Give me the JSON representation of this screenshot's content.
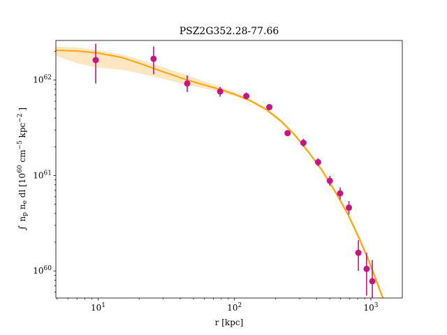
{
  "chart_data": {
    "type": "scatter",
    "title": "PSZ2G352.28-77.66",
    "xlabel": "r [kpc]",
    "ylabel_parts": {
      "integral": "∫",
      "n": "n",
      "p": "p",
      "e": "e",
      "dl": "dl [10",
      "exp1": "60",
      "cm": "cm",
      "exp2": "−5",
      "kpc": "kpc",
      "exp3": "−2",
      "close": "]"
    },
    "xscale": "log",
    "yscale": "log",
    "xlim": [
      4.9,
      1700
    ],
    "ylim": [
      5.2e+59,
      2.6e+62
    ],
    "xticks": [
      {
        "value": 10,
        "base": "10",
        "exp": "1"
      },
      {
        "value": 100,
        "base": "10",
        "exp": "2"
      },
      {
        "value": 1000,
        "base": "10",
        "exp": "3"
      }
    ],
    "yticks": [
      {
        "value": 1e+60,
        "base": "10",
        "exp": "60"
      },
      {
        "value": 1e+61,
        "base": "10",
        "exp": "61"
      },
      {
        "value": 1e+62,
        "base": "10",
        "exp": "62"
      }
    ],
    "colors": {
      "points": "#c71585",
      "model": "#ffa500",
      "band": "#ffd59a"
    },
    "points": [
      {
        "x": 9.6,
        "y": 1.62e+62,
        "ylo": 9.2e+61,
        "yhi": 2.4e+62
      },
      {
        "x": 25.5,
        "y": 1.67e+62,
        "ylo": 1.15e+62,
        "yhi": 2.25e+62
      },
      {
        "x": 45.0,
        "y": 9.2e+61,
        "ylo": 7.5e+61,
        "yhi": 1.12e+62
      },
      {
        "x": 78.5,
        "y": 7.6e+61,
        "ylo": 6.7e+61,
        "yhi": 8.5e+61
      },
      {
        "x": 122,
        "y": 6.8e+61,
        "ylo": 6.3e+61,
        "yhi": 7.4e+61
      },
      {
        "x": 180,
        "y": 5.2e+61,
        "ylo": 4.9e+61,
        "yhi": 5.5e+61
      },
      {
        "x": 245,
        "y": 2.78e+61,
        "ylo": 2.6e+61,
        "yhi": 2.96e+61
      },
      {
        "x": 320,
        "y": 2.2e+61,
        "ylo": 2e+61,
        "yhi": 2.42e+61
      },
      {
        "x": 410,
        "y": 1.38e+61,
        "ylo": 1.25e+61,
        "yhi": 1.52e+61
      },
      {
        "x": 500,
        "y": 8.8e+60,
        "ylo": 7.8e+60,
        "yhi": 9.9e+60
      },
      {
        "x": 595,
        "y": 6.5e+60,
        "ylo": 5.6e+60,
        "yhi": 7.5e+60
      },
      {
        "x": 690,
        "y": 4.6e+60,
        "ylo": 3.9e+60,
        "yhi": 5.4e+60
      },
      {
        "x": 810,
        "y": 1.55e+60,
        "ylo": 1e+60,
        "yhi": 2.1e+60
      },
      {
        "x": 930,
        "y": 1.05e+60,
        "ylo": 5.5e+59,
        "yhi": 1.55e+60
      },
      {
        "x": 1025,
        "y": 7.8e+59,
        "ylo": 5.2e+59,
        "yhi": 1.3e+60
      }
    ],
    "model": [
      {
        "x": 4.9,
        "y": 2.05e+62,
        "lo": 1.8e+62,
        "hi": 2.25e+62
      },
      {
        "x": 7,
        "y": 2.02e+62,
        "lo": 1.5e+62,
        "hi": 2.2e+62
      },
      {
        "x": 10,
        "y": 1.92e+62,
        "lo": 1.35e+62,
        "hi": 2.05e+62
      },
      {
        "x": 15,
        "y": 1.72e+62,
        "lo": 1.28e+62,
        "hi": 1.85e+62
      },
      {
        "x": 20,
        "y": 1.5e+62,
        "lo": 1.18e+62,
        "hi": 1.65e+62
      },
      {
        "x": 30,
        "y": 1.22e+62,
        "lo": 1.03e+62,
        "hi": 1.36e+62
      },
      {
        "x": 45,
        "y": 1e+62,
        "lo": 8.9e+61,
        "hi": 1.12e+62
      },
      {
        "x": 60,
        "y": 8.9e+61,
        "lo": 8.2e+61,
        "hi": 9.7e+61
      },
      {
        "x": 80,
        "y": 7.9e+61,
        "lo": 7.4e+61,
        "hi": 8.4e+61
      },
      {
        "x": 100,
        "y": 7.1e+61,
        "lo": 6.8e+61,
        "hi": 7.5e+61
      },
      {
        "x": 130,
        "y": 6.1e+61,
        "lo": 5.9e+61,
        "hi": 6.4e+61
      },
      {
        "x": 170,
        "y": 4.95e+61,
        "lo": 4.75e+61,
        "hi": 5.15e+61
      },
      {
        "x": 220,
        "y": 3.7e+61,
        "lo": 3.55e+61,
        "hi": 3.85e+61
      },
      {
        "x": 280,
        "y": 2.6e+61,
        "lo": 2.5e+61,
        "hi": 2.7e+61
      },
      {
        "x": 350,
        "y": 1.75e+61,
        "lo": 1.68e+61,
        "hi": 1.82e+61
      },
      {
        "x": 440,
        "y": 1.12e+61,
        "lo": 1.07e+61,
        "hi": 1.17e+61
      },
      {
        "x": 550,
        "y": 6.7e+60,
        "lo": 6.4e+60,
        "hi": 7e+60
      },
      {
        "x": 680,
        "y": 3.9e+60,
        "lo": 3.7e+60,
        "hi": 4.1e+60
      },
      {
        "x": 820,
        "y": 2.2e+60,
        "lo": 2.05e+60,
        "hi": 2.35e+60
      },
      {
        "x": 950,
        "y": 1.35e+60,
        "lo": 1.25e+60,
        "hi": 1.45e+60
      },
      {
        "x": 1080,
        "y": 8.4e+59,
        "lo": 7.8e+59,
        "hi": 9e+59
      },
      {
        "x": 1200,
        "y": 5.6e+59,
        "lo": 5.2e+59,
        "hi": 6e+59
      },
      {
        "x": 1260,
        "y": 4.6e+59,
        "lo": 4.3e+59,
        "hi": 4.9e+59
      }
    ]
  }
}
